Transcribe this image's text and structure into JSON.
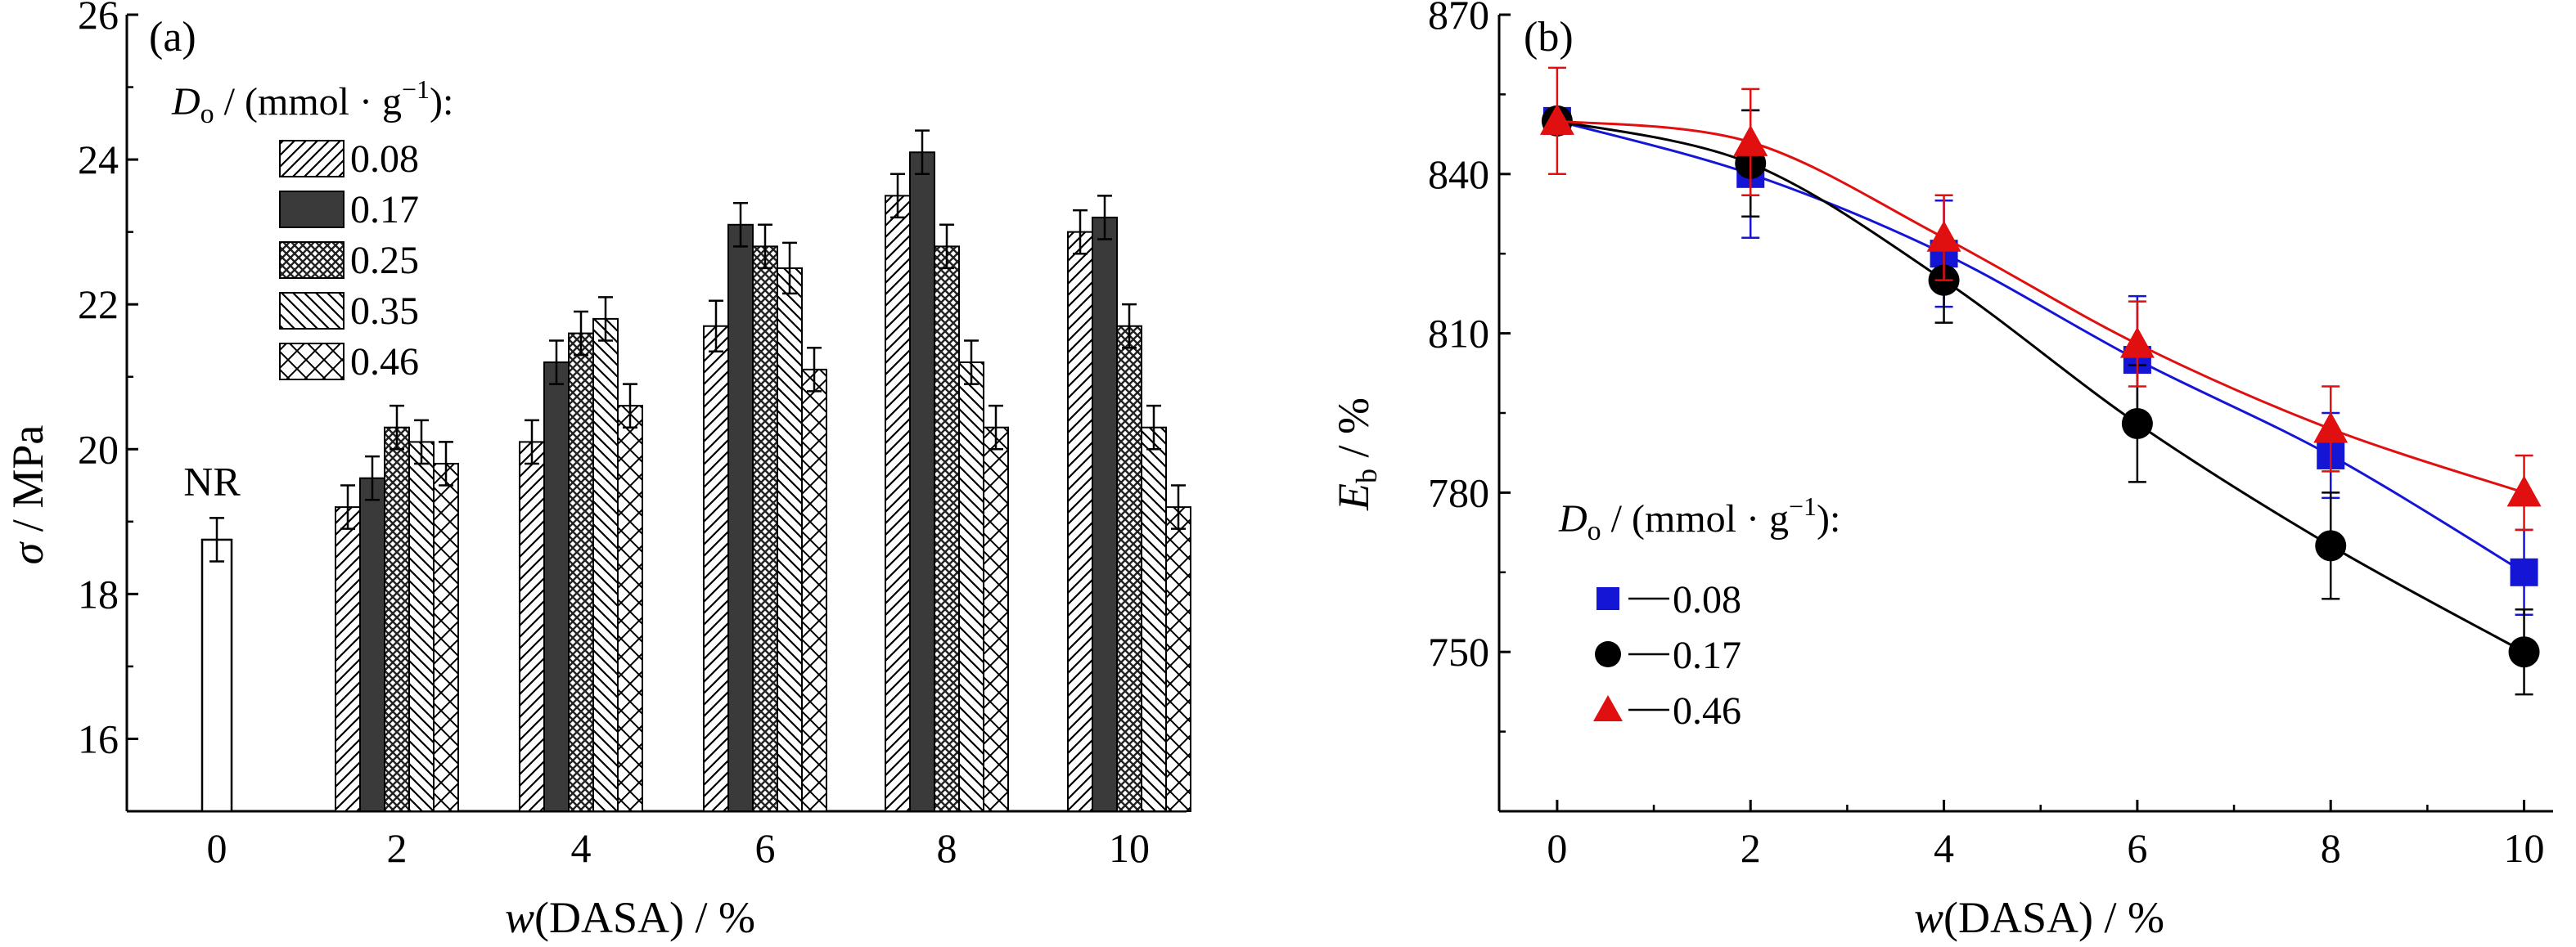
{
  "chart_data": [
    {
      "type": "bar",
      "panel_label": "(a)",
      "xlabel": "w(DASA) / %",
      "ylabel": "σ / MPa",
      "ylim": [
        15,
        26
      ],
      "yticks": [
        16,
        18,
        20,
        22,
        24,
        26
      ],
      "categories": [
        "0",
        "2",
        "4",
        "6",
        "8",
        "10"
      ],
      "legend_title": "D_o / (mmol·g⁻¹):",
      "legend_position": "top-left",
      "reference_bar": {
        "label": "NR",
        "category": "0",
        "value": 18.75,
        "error": 0.3
      },
      "series": [
        {
          "name": "0.08",
          "pattern": "hatch-diagonal",
          "values": [
            null,
            19.2,
            20.1,
            21.7,
            23.5,
            23.0
          ],
          "errors": [
            null,
            0.3,
            0.3,
            0.35,
            0.3,
            0.3
          ]
        },
        {
          "name": "0.17",
          "pattern": "solid-dark",
          "values": [
            null,
            19.6,
            21.2,
            23.1,
            24.1,
            23.2
          ],
          "errors": [
            null,
            0.3,
            0.3,
            0.3,
            0.3,
            0.3
          ]
        },
        {
          "name": "0.25",
          "pattern": "crosshatch-dense",
          "values": [
            null,
            20.3,
            21.6,
            22.8,
            22.8,
            21.7
          ],
          "errors": [
            null,
            0.3,
            0.3,
            0.3,
            0.3,
            0.3
          ]
        },
        {
          "name": "0.35",
          "pattern": "hatch-backslash",
          "values": [
            null,
            20.1,
            21.8,
            22.5,
            21.2,
            20.3
          ],
          "errors": [
            null,
            0.3,
            0.3,
            0.35,
            0.3,
            0.3
          ]
        },
        {
          "name": "0.46",
          "pattern": "crosshatch-open",
          "values": [
            null,
            19.8,
            20.6,
            21.1,
            20.3,
            19.2
          ],
          "errors": [
            null,
            0.3,
            0.3,
            0.3,
            0.3,
            0.3
          ]
        }
      ]
    },
    {
      "type": "line",
      "panel_label": "(b)",
      "xlabel": "w(DASA) / %",
      "ylabel": "E_b / %",
      "xlim": [
        -0.6,
        10.3
      ],
      "ylim": [
        720,
        870
      ],
      "xticks": [
        0,
        2,
        4,
        6,
        8,
        10
      ],
      "yticks": [
        750,
        780,
        810,
        840,
        870
      ],
      "x": [
        0,
        2,
        4,
        6,
        8,
        10
      ],
      "legend_title": "D_o / (mmol·g⁻¹):",
      "legend_position": "bottom-left",
      "series": [
        {
          "name": "0.08",
          "marker": "square",
          "color": "#1515d6",
          "values": [
            850,
            840,
            825,
            805,
            787,
            765
          ],
          "errors": [
            2,
            12,
            10,
            12,
            8,
            8
          ]
        },
        {
          "name": "0.17",
          "marker": "circle",
          "color": "#000000",
          "values": [
            850,
            842,
            820,
            793,
            770,
            750
          ],
          "errors": [
            2,
            10,
            8,
            11,
            10,
            8
          ]
        },
        {
          "name": "0.46",
          "marker": "triangle",
          "color": "#e01010",
          "values": [
            850,
            846,
            828,
            808,
            792,
            780
          ],
          "errors": [
            10,
            10,
            8,
            8,
            8,
            7
          ]
        }
      ]
    }
  ]
}
